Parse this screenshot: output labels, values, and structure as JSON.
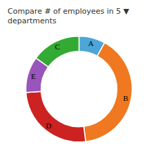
{
  "chart_data": {
    "type": "donut",
    "title": "Compare # of employees in 5 ▼ departments",
    "categories": [
      "A",
      "B",
      "D",
      "E",
      "C"
    ],
    "values": [
      8,
      40,
      26,
      11,
      15
    ],
    "colors": [
      "#4da6d8",
      "#f07820",
      "#cc2222",
      "#9955bb",
      "#33aa33"
    ]
  }
}
